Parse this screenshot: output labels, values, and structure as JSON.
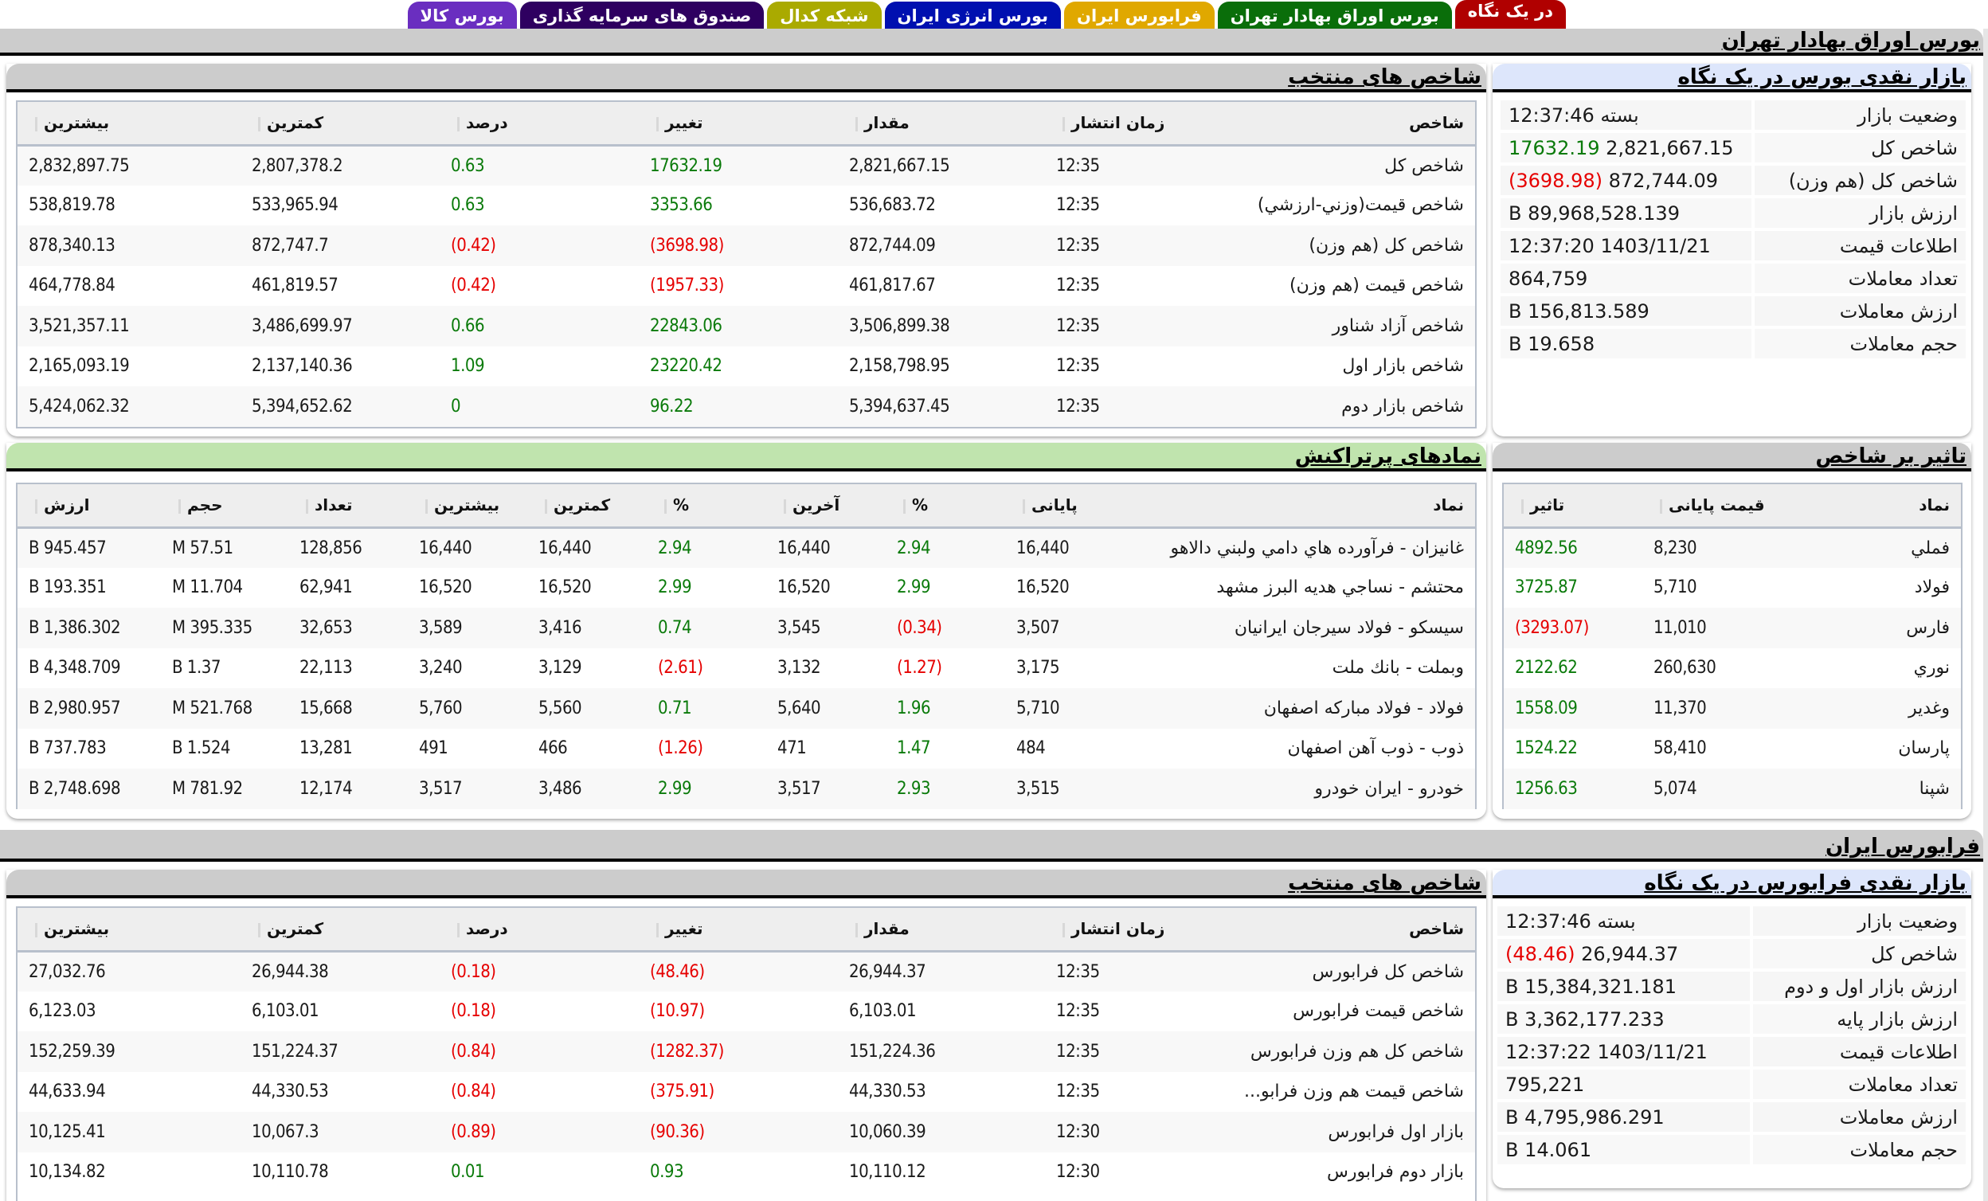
{
  "tabs": [
    {
      "label": "در یک نگاه",
      "color": "#b00000",
      "active": true
    },
    {
      "label": "بورس اوراق بهادار تهران",
      "color": "#0a6e0a"
    },
    {
      "label": "فرابورس ایران",
      "color": "#e0a800"
    },
    {
      "label": "بورس انرژی ایران",
      "color": "#0010b0"
    },
    {
      "label": "شبکه کدال",
      "color": "#aaaa00"
    },
    {
      "label": "صندوق های سرمایه گذاری",
      "color": "#2e0060"
    },
    {
      "label": "بورس کالا",
      "color": "#6a2ec0"
    }
  ],
  "sections": {
    "tse_title": "بورس اوراق بهادار تهران",
    "ifb_title": "فرابورس ایران"
  },
  "tse_glance": {
    "title": "بازار نقدی بورس در یک نگاه",
    "rows": [
      {
        "label": "وضعیت بازار",
        "value": "بسته 12:37:46"
      },
      {
        "label": "شاخص کل",
        "value": "2,821,667.15",
        "change": "17632.19",
        "dir": "pos"
      },
      {
        "label": "شاخص کل (هم وزن)",
        "value": "872,744.09",
        "change": "(3698.98)",
        "dir": "neg"
      },
      {
        "label": "ارزش بازار",
        "value": "89,968,528.139 B"
      },
      {
        "label": "اطلاعات قیمت",
        "value": "1403/11/21 12:37:20"
      },
      {
        "label": "تعداد معاملات",
        "value": "864,759"
      },
      {
        "label": "ارزش معاملات",
        "value": "156,813.589 B"
      },
      {
        "label": "حجم معاملات",
        "value": "19.658 B"
      }
    ]
  },
  "tse_indices": {
    "title": "شاخص های منتخب",
    "columns": [
      "شاخص",
      "زمان انتشار",
      "مقدار",
      "تغییر",
      "درصد",
      "کمترین",
      "بیشترین"
    ],
    "rows": [
      {
        "name": "شاخص کل",
        "time": "12:35",
        "value": "2,821,667.15",
        "change": "17632.19",
        "pct": "0.63",
        "min": "2,807,378.2",
        "max": "2,832,897.75",
        "dir": "pos"
      },
      {
        "name": "شاخص قيمت(وزني-ارزشي)",
        "time": "12:35",
        "value": "536,683.72",
        "change": "3353.66",
        "pct": "0.63",
        "min": "533,965.94",
        "max": "538,819.78",
        "dir": "pos"
      },
      {
        "name": "شاخص كل (هم وزن)",
        "time": "12:35",
        "value": "872,744.09",
        "change": "(3698.98)",
        "pct": "(0.42)",
        "min": "872,747.7",
        "max": "878,340.13",
        "dir": "neg"
      },
      {
        "name": "شاخص قيمت (هم وزن)",
        "time": "12:35",
        "value": "461,817.67",
        "change": "(1957.33)",
        "pct": "(0.42)",
        "min": "461,819.57",
        "max": "464,778.84",
        "dir": "neg"
      },
      {
        "name": "شاخص آزاد شناور",
        "time": "12:35",
        "value": "3,506,899.38",
        "change": "22843.06",
        "pct": "0.66",
        "min": "3,486,699.97",
        "max": "3,521,357.11",
        "dir": "pos"
      },
      {
        "name": "شاخص بازار اول",
        "time": "12:35",
        "value": "2,158,798.95",
        "change": "23220.42",
        "pct": "1.09",
        "min": "2,137,140.36",
        "max": "2,165,093.19",
        "dir": "pos"
      },
      {
        "name": "شاخص بازار دوم",
        "time": "12:35",
        "value": "5,394,637.45",
        "change": "96.22",
        "pct": "0",
        "min": "5,394,652.62",
        "max": "5,424,062.32",
        "dir": "pos"
      }
    ]
  },
  "index_impact": {
    "title": "تاثیر بر شاخص",
    "columns": [
      "نماد",
      "قیمت پایانی",
      "تاثیر"
    ],
    "rows": [
      {
        "symbol": "فملي",
        "close": "8,230",
        "impact": "4892.56",
        "dir": "pos"
      },
      {
        "symbol": "فولاد",
        "close": "5,710",
        "impact": "3725.87",
        "dir": "pos"
      },
      {
        "symbol": "فارس",
        "close": "11,010",
        "impact": "(3293.07)",
        "dir": "neg"
      },
      {
        "symbol": "نوري",
        "close": "260,630",
        "impact": "2122.62",
        "dir": "pos"
      },
      {
        "symbol": "وغدير",
        "close": "11,370",
        "impact": "1558.09",
        "dir": "pos"
      },
      {
        "symbol": "پارسان",
        "close": "58,410",
        "impact": "1524.22",
        "dir": "pos"
      },
      {
        "symbol": "شپنا",
        "close": "5,074",
        "impact": "1256.63",
        "dir": "pos"
      }
    ]
  },
  "most_traded": {
    "title": "نمادهای پرتراکنش",
    "columns": [
      "نماد",
      "پایانی",
      "%",
      "آخرین",
      "%",
      "کمترین",
      "بیشترین",
      "تعداد",
      "حجم",
      "ارزش"
    ],
    "rows": [
      {
        "symbol": "غانيزان - فرآورده هاي دامي ولبني دالاهو",
        "close": "16,440",
        "close_pct": "2.94",
        "close_dir": "pos",
        "last": "16,440",
        "last_pct": "2.94",
        "last_dir": "pos",
        "min": "16,440",
        "max": "16,440",
        "count": "128,856",
        "volume": "57.51 M",
        "value": "945.457 B"
      },
      {
        "symbol": "محتشم - نساجي هديه البرز مشهد",
        "close": "16,520",
        "close_pct": "2.99",
        "close_dir": "pos",
        "last": "16,520",
        "last_pct": "2.99",
        "last_dir": "pos",
        "min": "16,520",
        "max": "16,520",
        "count": "62,941",
        "volume": "11.704 M",
        "value": "193.351 B"
      },
      {
        "symbol": "سيسكو - فولاد سيرجان ايرانيان",
        "close": "3,507",
        "close_pct": "(0.34)",
        "close_dir": "neg",
        "last": "3,545",
        "last_pct": "0.74",
        "last_dir": "pos",
        "min": "3,416",
        "max": "3,589",
        "count": "32,653",
        "volume": "395.335 M",
        "value": "1,386.302 B"
      },
      {
        "symbol": "وبملت - بانك ملت",
        "close": "3,175",
        "close_pct": "(1.27)",
        "close_dir": "neg",
        "last": "3,132",
        "last_pct": "(2.61)",
        "last_dir": "neg",
        "min": "3,129",
        "max": "3,240",
        "count": "22,113",
        "volume": "1.37 B",
        "value": "4,348.709 B"
      },
      {
        "symbol": "فولاد - فولاد مباركه اصفهان",
        "close": "5,710",
        "close_pct": "1.96",
        "close_dir": "pos",
        "last": "5,640",
        "last_pct": "0.71",
        "last_dir": "pos",
        "min": "5,560",
        "max": "5,760",
        "count": "15,668",
        "volume": "521.768 M",
        "value": "2,980.957 B"
      },
      {
        "symbol": "ذوب - ذوب آهن اصفهان",
        "close": "484",
        "close_pct": "1.47",
        "close_dir": "pos",
        "last": "471",
        "last_pct": "(1.26)",
        "last_dir": "neg",
        "min": "466",
        "max": "491",
        "count": "13,281",
        "volume": "1.524 B",
        "value": "737.783 B"
      },
      {
        "symbol": "خودرو - ايران خودرو",
        "close": "3,515",
        "close_pct": "2.93",
        "close_dir": "pos",
        "last": "3,517",
        "last_pct": "2.99",
        "last_dir": "pos",
        "min": "3,486",
        "max": "3,517",
        "count": "12,174",
        "volume": "781.92 M",
        "value": "2,748.698 B"
      }
    ]
  },
  "ifb_glance": {
    "title": "بازار نقدی فرابورس در یک نگاه",
    "rows": [
      {
        "label": "وضعیت بازار",
        "value": "بسته 12:37:46"
      },
      {
        "label": "شاخص کل",
        "value": "26,944.37",
        "change": "(48.46)",
        "dir": "neg"
      },
      {
        "label": "ارزش بازار اول و دوم",
        "value": "15,384,321.181 B"
      },
      {
        "label": "ارزش بازار پایه",
        "value": "3,362,177.233 B"
      },
      {
        "label": "اطلاعات قیمت",
        "value": "1403/11/21 12:37:22"
      },
      {
        "label": "تعداد معاملات",
        "value": "795,221"
      },
      {
        "label": "ارزش معاملات",
        "value": "4,795,986.291 B"
      },
      {
        "label": "حجم معاملات",
        "value": "14.061 B"
      }
    ]
  },
  "ifb_indices": {
    "title": "شاخص های منتخب",
    "columns": [
      "شاخص",
      "زمان انتشار",
      "مقدار",
      "تغییر",
      "درصد",
      "کمترین",
      "بیشترین"
    ],
    "rows": [
      {
        "name": "شاخص كل فرابورس",
        "time": "12:35",
        "value": "26,944.37",
        "change": "(48.46)",
        "pct": "(0.18)",
        "min": "26,944.38",
        "max": "27,032.76",
        "dir": "neg"
      },
      {
        "name": "شاخص قيمت فرابورس",
        "time": "12:35",
        "value": "6,103.01",
        "change": "(10.97)",
        "pct": "(0.18)",
        "min": "6,103.01",
        "max": "6,123.03",
        "dir": "neg"
      },
      {
        "name": "شاخص كل هم وزن فرابورس",
        "time": "12:35",
        "value": "151,224.36",
        "change": "(1282.37)",
        "pct": "(0.84)",
        "min": "151,224.37",
        "max": "152,259.39",
        "dir": "neg"
      },
      {
        "name": "شاخص قيمت هم وزن فرابو...",
        "time": "12:35",
        "value": "44,330.53",
        "change": "(375.91)",
        "pct": "(0.84)",
        "min": "44,330.53",
        "max": "44,633.94",
        "dir": "neg"
      },
      {
        "name": "بازار اول فرابورس",
        "time": "12:30",
        "value": "10,060.39",
        "change": "(90.36)",
        "pct": "(0.89)",
        "min": "10,067.3",
        "max": "10,125.41",
        "dir": "neg"
      },
      {
        "name": "بازار دوم فرابورس",
        "time": "12:30",
        "value": "10,110.12",
        "change": "0.93",
        "pct": "0.01",
        "min": "10,110.78",
        "max": "10,134.82",
        "dir": "pos"
      }
    ]
  }
}
